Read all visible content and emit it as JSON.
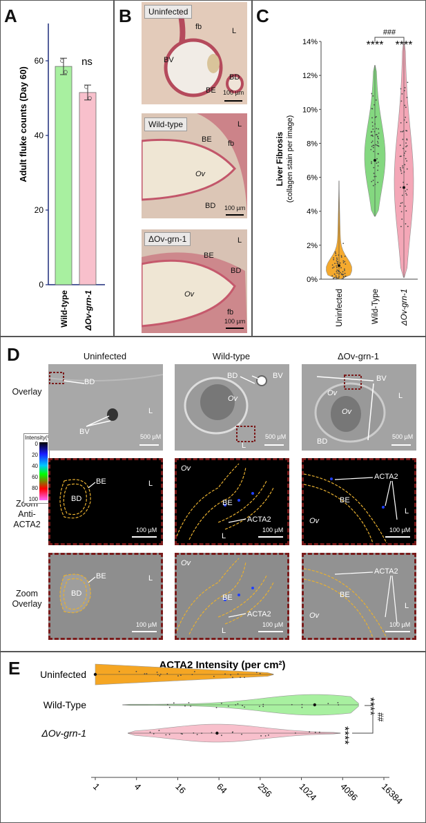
{
  "panels": {
    "A": "A",
    "B": "B",
    "C": "C",
    "D": "D",
    "E": "E"
  },
  "panelA": {
    "chart_data": {
      "type": "bar",
      "categories": [
        "Wild-type",
        "ΔOv-grn-1"
      ],
      "values": [
        58.5,
        51.5
      ],
      "errors": [
        2.2,
        2.0
      ],
      "points": [
        [
          60,
          57
        ],
        [
          53,
          50
        ]
      ],
      "ylabel": "Adult fluke counts (Day 60)",
      "ylim": [
        0,
        70
      ],
      "yticks": [
        0,
        20,
        40,
        60
      ],
      "annotation": "ns",
      "colors": [
        "#a8f0a0",
        "#f8c0cc"
      ]
    }
  },
  "panelB": {
    "images": [
      {
        "tag": "Uninfected",
        "labels": [
          "fb",
          "L",
          "BV",
          "BD",
          "BE"
        ],
        "scale": "100 µm"
      },
      {
        "tag": "Wild-type",
        "labels": [
          "L",
          "BE",
          "fb",
          "Ov",
          "BD"
        ],
        "scale": "100 µm"
      },
      {
        "tag": "ΔOv-grn-1",
        "labels": [
          "L",
          "BE",
          "BD",
          "Ov",
          "fb"
        ],
        "scale": "100 µm"
      }
    ]
  },
  "panelC": {
    "chart_data": {
      "type": "violin",
      "categories": [
        "Uninfected",
        "Wild-Type",
        "ΔOv-grn-1"
      ],
      "ranges": [
        [
          0,
          5.8
        ],
        [
          3.7,
          12.6
        ],
        [
          0.1,
          14
        ]
      ],
      "medians": [
        0.8,
        7.0,
        5.4
      ],
      "ylabel": "Liver Fibrosis",
      "ylabel2": "(collagen stain per image)",
      "ylim": [
        0,
        14
      ],
      "yticks": [
        "0%",
        "2%",
        "4%",
        "6%",
        "8%",
        "10%",
        "12%",
        "14%"
      ],
      "sig": [
        "****",
        "****"
      ],
      "bracket": "###",
      "colors": [
        "#f5a623",
        "#7ed67a",
        "#f4a3b4"
      ]
    }
  },
  "panelD": {
    "columns": [
      "Uninfected",
      "Wild-type",
      "ΔOv-grn-1"
    ],
    "rows": [
      "Overlay",
      "Zoom Anti-ACTA2",
      "Zoom Overlay"
    ],
    "row2a": "Zoom",
    "row2b": "Anti-",
    "row2c": "ACTA2",
    "row3a": "Zoom",
    "row3b": "Overlay",
    "legend_title": "Intensity(%)",
    "legend_ticks": [
      "0",
      "20",
      "40",
      "60",
      "80",
      "100"
    ],
    "scale_overview": "500 µM",
    "scale_zoom": "100 µM",
    "labels": {
      "BD": "BD",
      "BV": "BV",
      "L": "L",
      "Ov": "Ov",
      "BE": "BE",
      "ACTA2": "ACTA2"
    }
  },
  "panelE": {
    "chart_data": {
      "type": "violin",
      "title": "ACTA2 Intensity (per cm²)",
      "categories": [
        "Uninfected",
        "Wild-Type",
        "ΔOv-grn-1"
      ],
      "ranges": [
        [
          1,
          400
        ],
        [
          2.5,
          7000
        ],
        [
          3,
          3800
        ]
      ],
      "medians": [
        1,
        1600,
        60
      ],
      "xscale": "log2",
      "xticks": [
        "1",
        "4",
        "16",
        "64",
        "256",
        "1024",
        "4096",
        "16384"
      ],
      "sig": [
        "****",
        "****"
      ],
      "bracket": "##",
      "colors": [
        "#f5a623",
        "#a8f0a0",
        "#f8c0cc"
      ]
    }
  }
}
